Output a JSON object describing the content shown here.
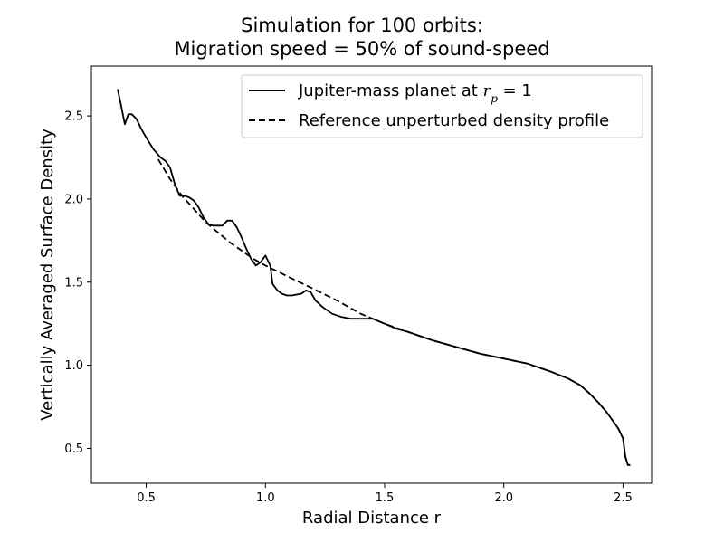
{
  "chart_data": {
    "type": "line",
    "title_line1": "Simulation for 100 orbits:",
    "title_line2": "Migration speed = 50% of sound-speed",
    "xlabel": "Radial Distance r",
    "ylabel": "Vertically Averaged Surface Density",
    "xlim": [
      0.27,
      2.62
    ],
    "ylim": [
      0.29,
      2.8
    ],
    "xticks": [
      "0.5",
      "1.0",
      "1.5",
      "2.0",
      "2.5"
    ],
    "yticks": [
      "0.5",
      "1.0",
      "1.5",
      "2.0",
      "2.5"
    ],
    "legend_position": "top-right",
    "series": [
      {
        "name": "Jupiter-mass planet at r_p = 1",
        "name_prefix": "Jupiter-mass planet at ",
        "name_math": "r",
        "name_sub": "p",
        "name_suffix": " = 1",
        "style": "solid",
        "color": "#000000",
        "x": [
          0.38,
          0.395,
          0.41,
          0.425,
          0.44,
          0.46,
          0.48,
          0.5,
          0.53,
          0.56,
          0.58,
          0.6,
          0.62,
          0.64,
          0.66,
          0.68,
          0.7,
          0.72,
          0.74,
          0.76,
          0.78,
          0.8,
          0.82,
          0.84,
          0.86,
          0.88,
          0.9,
          0.92,
          0.94,
          0.96,
          0.98,
          1.0,
          1.02,
          1.03,
          1.05,
          1.07,
          1.09,
          1.11,
          1.13,
          1.15,
          1.17,
          1.19,
          1.21,
          1.24,
          1.28,
          1.32,
          1.36,
          1.4,
          1.45,
          1.5,
          1.55,
          1.6,
          1.7,
          1.8,
          1.9,
          2.0,
          2.1,
          2.2,
          2.27,
          2.32,
          2.36,
          2.4,
          2.43,
          2.46,
          2.48,
          2.5,
          2.51,
          2.52,
          2.53
        ],
        "y": [
          2.66,
          2.56,
          2.45,
          2.51,
          2.51,
          2.48,
          2.42,
          2.37,
          2.3,
          2.25,
          2.23,
          2.19,
          2.09,
          2.02,
          2.02,
          2.01,
          1.99,
          1.95,
          1.89,
          1.85,
          1.84,
          1.84,
          1.84,
          1.87,
          1.87,
          1.83,
          1.77,
          1.7,
          1.64,
          1.6,
          1.62,
          1.66,
          1.6,
          1.49,
          1.45,
          1.43,
          1.42,
          1.42,
          1.425,
          1.43,
          1.45,
          1.44,
          1.39,
          1.35,
          1.31,
          1.29,
          1.28,
          1.28,
          1.28,
          1.25,
          1.22,
          1.2,
          1.15,
          1.11,
          1.07,
          1.04,
          1.01,
          0.96,
          0.92,
          0.88,
          0.83,
          0.77,
          0.72,
          0.66,
          0.62,
          0.56,
          0.45,
          0.4,
          0.4
        ]
      },
      {
        "name": "Reference unperturbed density profile",
        "style": "dashed",
        "color": "#000000",
        "x": [
          0.55,
          0.6,
          0.65,
          0.7,
          0.75,
          0.8,
          0.85,
          0.9,
          0.95,
          1.0,
          1.1,
          1.2,
          1.3,
          1.4,
          1.5,
          1.6,
          1.7,
          1.8,
          1.9,
          2.0,
          2.1,
          2.2,
          2.27,
          2.32,
          2.36,
          2.4,
          2.43,
          2.46,
          2.48,
          2.5,
          2.51,
          2.52,
          2.53
        ],
        "y": [
          2.24,
          2.12,
          2.02,
          1.94,
          1.86,
          1.8,
          1.74,
          1.69,
          1.64,
          1.6,
          1.53,
          1.46,
          1.39,
          1.31,
          1.25,
          1.2,
          1.15,
          1.11,
          1.07,
          1.04,
          1.01,
          0.96,
          0.92,
          0.88,
          0.83,
          0.77,
          0.72,
          0.66,
          0.62,
          0.56,
          0.45,
          0.4,
          0.4
        ]
      }
    ]
  }
}
